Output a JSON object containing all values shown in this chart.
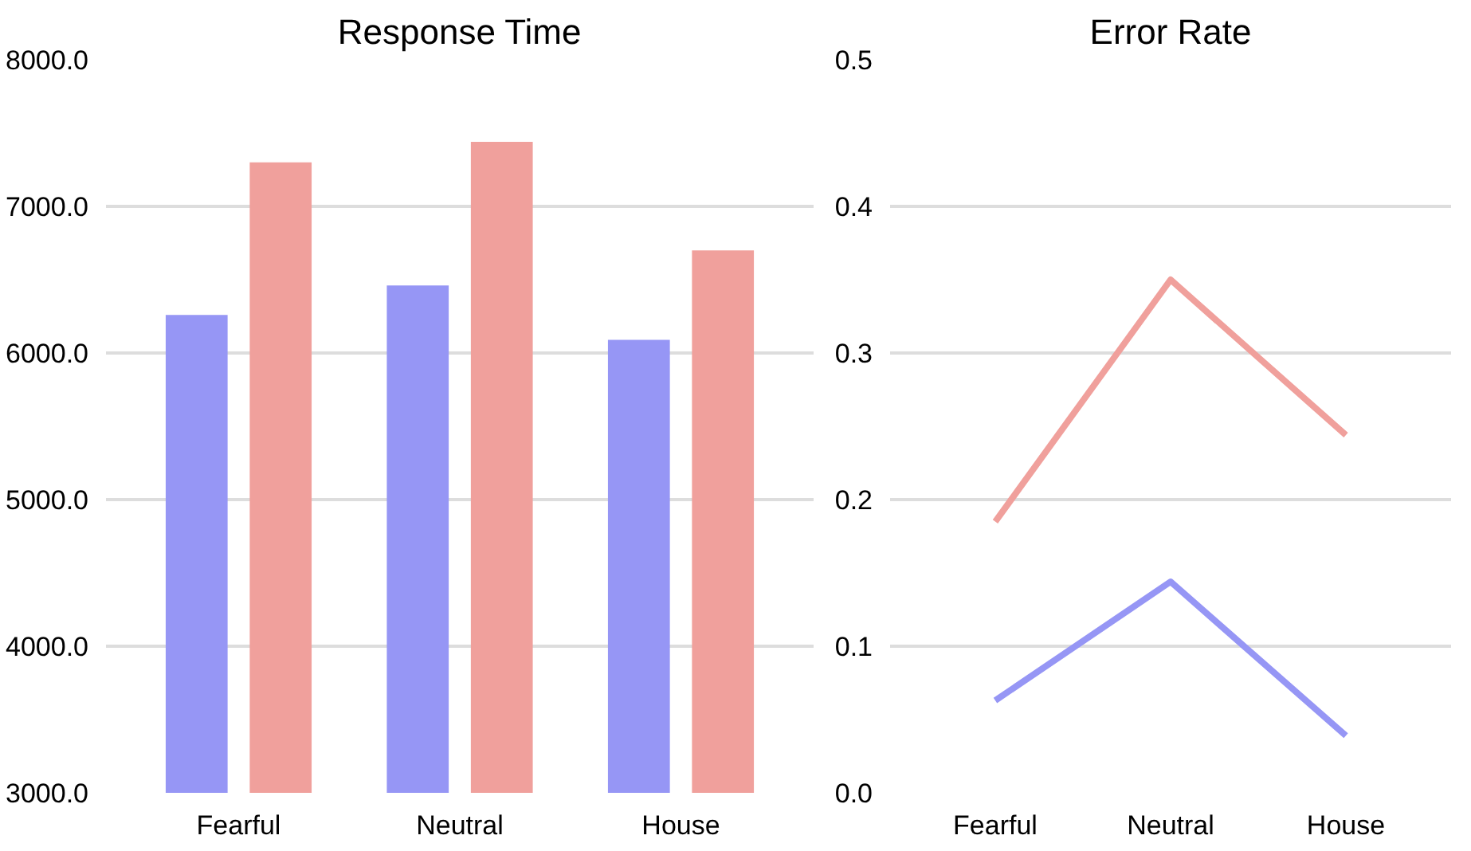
{
  "chart_data": [
    {
      "type": "bar",
      "title": "Response Time",
      "categories": [
        "Fearful",
        "Neutral",
        "House"
      ],
      "series": [
        {
          "color": "#9696f5",
          "values": [
            6260,
            6460,
            6090
          ]
        },
        {
          "color": "#f0a09c",
          "values": [
            7300,
            7440,
            6700
          ]
        }
      ],
      "ylim": [
        3000,
        8000
      ],
      "yticks": [
        {
          "value": 3000,
          "label": "3000.0"
        },
        {
          "value": 4000,
          "label": "4000.0"
        },
        {
          "value": 5000,
          "label": "5000.0"
        },
        {
          "value": 6000,
          "label": "6000.0"
        },
        {
          "value": 7000,
          "label": "7000.0"
        },
        {
          "value": 8000,
          "label": "8000.0"
        }
      ],
      "grid": "y"
    },
    {
      "type": "line",
      "title": "Error Rate",
      "categories": [
        "Fearful",
        "Neutral",
        "House"
      ],
      "series": [
        {
          "color": "#f0a09c",
          "values": [
            0.185,
            0.35,
            0.244
          ]
        },
        {
          "color": "#9696f5",
          "values": [
            0.063,
            0.144,
            0.039
          ]
        }
      ],
      "ylim": [
        0,
        0.5
      ],
      "yticks": [
        {
          "value": 0,
          "label": "0.0"
        },
        {
          "value": 0.1,
          "label": "0.1"
        },
        {
          "value": 0.2,
          "label": "0.2"
        },
        {
          "value": 0.3,
          "label": "0.3"
        },
        {
          "value": 0.4,
          "label": "0.4"
        },
        {
          "value": 0.5,
          "label": "0.5"
        }
      ],
      "grid": "y",
      "marker": "none"
    }
  ]
}
